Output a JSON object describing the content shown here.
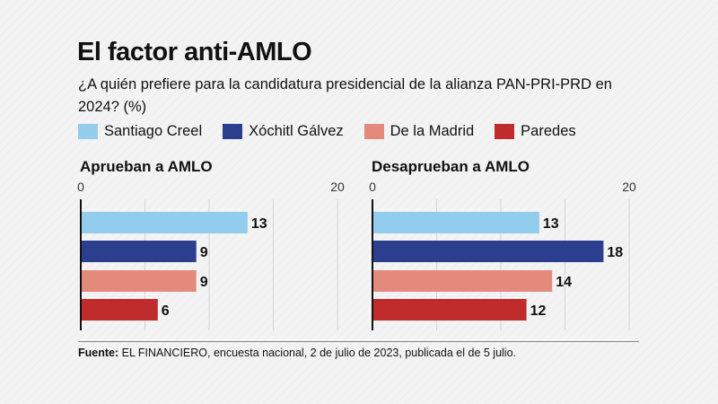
{
  "header": {
    "title": "El factor anti-AMLO",
    "subtitle": "¿A quién prefiere para la candidatura presidencial de la alianza PAN-PRI-PRD en 2024? (%)"
  },
  "legend": [
    {
      "label": "Santiago Creel",
      "color": "#93cdee"
    },
    {
      "label": "Xóchitl Gálvez",
      "color": "#2c3f8f"
    },
    {
      "label": "De la Madrid",
      "color": "#e48a7d"
    },
    {
      "label": "Paredes",
      "color": "#c02b2b"
    }
  ],
  "chart_data": [
    {
      "type": "bar",
      "orientation": "horizontal",
      "title": "Aprueban a AMLO",
      "categories": [
        "Santiago Creel",
        "Xóchitl Gálvez",
        "De la Madrid",
        "Paredes"
      ],
      "values": [
        13,
        9,
        9,
        6
      ],
      "xlim": [
        0,
        20
      ],
      "ticks": [
        0,
        5,
        10,
        15,
        20
      ],
      "tick_labels": [
        "0",
        "20"
      ],
      "grid": true,
      "unit": "%"
    },
    {
      "type": "bar",
      "orientation": "horizontal",
      "title": "Desaprueban a AMLO",
      "categories": [
        "Santiago Creel",
        "Xóchitl Gálvez",
        "De la Madrid",
        "Paredes"
      ],
      "values": [
        13,
        18,
        14,
        12
      ],
      "xlim": [
        0,
        20
      ],
      "ticks": [
        0,
        5,
        10,
        15,
        20
      ],
      "tick_labels": [
        "0",
        "20"
      ],
      "grid": true,
      "unit": "%"
    }
  ],
  "source": {
    "label": "Fuente:",
    "text": " EL FINANCIERO, encuesta nacional, 2 de julio de 2023, publicada el de 5 julio."
  }
}
